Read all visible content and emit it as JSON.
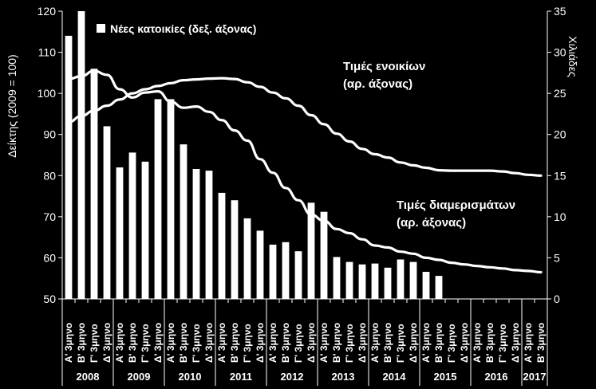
{
  "chart_data": {
    "type": "bar+line",
    "left_axis": {
      "label": "Δείκτης (2009 = 100)",
      "min": 50,
      "max": 120,
      "ticks": [
        50,
        60,
        70,
        80,
        90,
        100,
        110,
        120
      ]
    },
    "right_axis": {
      "label": "Χιλιάδες",
      "min": 0,
      "max": 35,
      "ticks": [
        0,
        5,
        10,
        15,
        20,
        25,
        30,
        35
      ]
    },
    "quarters": [
      "Α' 3μηνο",
      "Β' 3μηνο",
      "Γ' 3μηνο",
      "Δ' 3μηνο",
      "Α' 3μηνο",
      "Β' 3μηνο",
      "Γ' 3μηνο",
      "Δ' 3μηνο",
      "Α' 3μηνο",
      "Β' 3μηνο",
      "Γ' 3μηνο",
      "Δ' 3μηνο",
      "Α' 3μηνο",
      "Β' 3μηνο",
      "Γ' 3μηνο",
      "Δ' 3μηνο",
      "Α' 3μηνο",
      "Β' 3μηνο",
      "Γ' 3μηνο",
      "Δ' 3μηνο",
      "Α' 3μηνο",
      "Β' 3μηνο",
      "Γ' 3μηνο",
      "Δ' 3μηνο",
      "Α' 3μηνο",
      "Β' 3μηνο",
      "Γ' 3μηνο",
      "Δ' 3μηνο",
      "Α' 3μηνο",
      "Β' 3μηνο",
      "Γ' 3μηνο",
      "Δ' 3μηνο",
      "Α' 3μηνο",
      "Β' 3μηνο",
      "Γ' 3μηνο",
      "Δ' 3μηνο",
      "Α' 3μηνο",
      "Β' 3μηνο"
    ],
    "years": [
      {
        "label": "2008",
        "count": 4
      },
      {
        "label": "2009",
        "count": 4
      },
      {
        "label": "2010",
        "count": 4
      },
      {
        "label": "2011",
        "count": 4
      },
      {
        "label": "2012",
        "count": 4
      },
      {
        "label": "2013",
        "count": 4
      },
      {
        "label": "2014",
        "count": 4
      },
      {
        "label": "2015",
        "count": 4
      },
      {
        "label": "2016",
        "count": 4
      },
      {
        "label": "2017",
        "count": 2
      }
    ],
    "series": [
      {
        "name": "Νέες κατοικίες (δεξ. άξονας)",
        "type": "bar",
        "axis": "right",
        "color": "#ffffff",
        "values": [
          32,
          35,
          28,
          21,
          16,
          17.8,
          16.7,
          24.3,
          24.3,
          18.8,
          15.8,
          15.6,
          12.9,
          12,
          9.8,
          8.3,
          6.6,
          6.9,
          5.8,
          11.7,
          10.6,
          5.1,
          4.5,
          4.2,
          4.3,
          3.8,
          4.8,
          4.5,
          3.3,
          2.8,
          null,
          null,
          null,
          null,
          null,
          null,
          null,
          null
        ]
      },
      {
        "name": "Τιμές ενοικίων (αρ. άξονας)",
        "type": "line",
        "axis": "left",
        "color": "#ffffff",
        "values": [
          93,
          94.5,
          95.8,
          97,
          98.5,
          100,
          101,
          101.8,
          102.5,
          103.2,
          103.4,
          103.6,
          103.7,
          103.5,
          102.7,
          101.6,
          100.2,
          98.8,
          97,
          94.7,
          92.5,
          90.2,
          88.3,
          86.5,
          85.2,
          84.4,
          83.2,
          82.5,
          81.9,
          81.3,
          81.2,
          81.2,
          81.2,
          81.2,
          81.0,
          80.6,
          80.2,
          80.0
        ]
      },
      {
        "name": "Τιμές διαμερισμάτων (αρ. άξονας)",
        "type": "line",
        "axis": "left",
        "color": "#ffffff",
        "values": [
          103.5,
          104.2,
          105.5,
          104.5,
          101,
          99,
          100.2,
          100.5,
          98,
          96.5,
          96.8,
          95.5,
          93.5,
          91,
          88.5,
          84,
          80.7,
          77,
          74,
          70.5,
          69,
          67,
          66,
          64.5,
          63,
          62.5,
          61.5,
          61,
          60,
          59.5,
          58.8,
          58.4,
          58,
          57.7,
          57.4,
          57,
          56.8,
          56.5
        ]
      }
    ],
    "annotations": [
      {
        "id": "rent",
        "lines": [
          "Τιμές ενοικίων",
          "(αρ. άξονας)"
        ]
      },
      {
        "id": "price",
        "lines": [
          "Τιμές διαμερισμάτων",
          "(αρ. άξονας)"
        ]
      }
    ],
    "legend": {
      "label": "Νέες κατοικίες (δεξ. άξονας)",
      "position": "top-left"
    }
  }
}
